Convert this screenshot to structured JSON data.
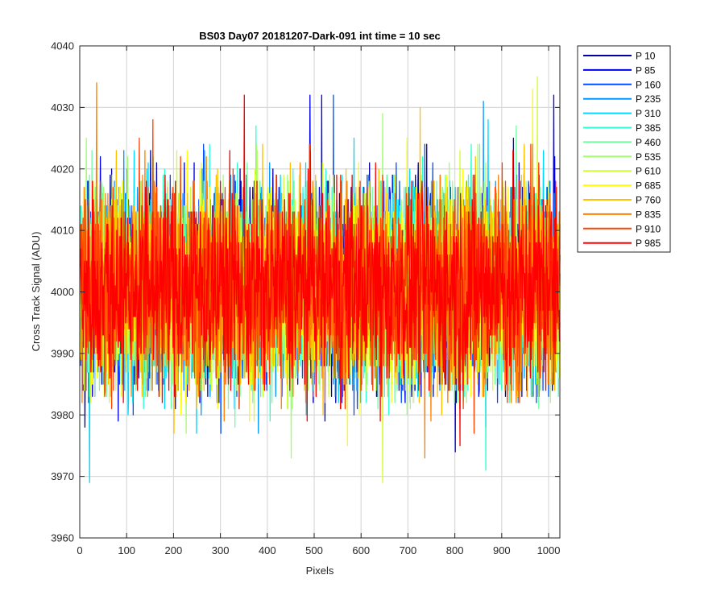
{
  "chart_data": {
    "type": "line",
    "title": "BS03 Day07 20181207-Dark-091 int time = 10 sec",
    "xlabel": "Pixels",
    "ylabel": "Cross Track Signal (ADU)",
    "xlim": [
      0,
      1024
    ],
    "ylim": [
      3960,
      4040
    ],
    "x_ticks": [
      0,
      100,
      200,
      300,
      400,
      500,
      600,
      700,
      800,
      900,
      1000
    ],
    "y_ticks": [
      3960,
      3970,
      3980,
      3990,
      4000,
      4010,
      4020,
      4030,
      4040
    ],
    "x_tick_labels": [
      "0",
      "100",
      "200",
      "300",
      "400",
      "500",
      "600",
      "700",
      "800",
      "900",
      "1000"
    ],
    "y_tick_labels": [
      "3960",
      "3970",
      "3980",
      "3990",
      "4000",
      "4010",
      "4020",
      "4030",
      "4040"
    ],
    "grid": true,
    "legend_position": "outside-top-right",
    "series": [
      {
        "name": "P 10",
        "color": "#0000a8",
        "summary": {
          "mean": 4001,
          "range": [
            3978,
            4024
          ]
        },
        "spikes": [
          [
            10,
            3978
          ],
          [
            150,
            4023
          ],
          [
            600,
            3985
          ]
        ]
      },
      {
        "name": "P 85",
        "color": "#0000ee",
        "summary": {
          "mean": 4001,
          "range": [
            3974,
            4032
          ]
        },
        "spikes": [
          [
            490,
            4032
          ],
          [
            515,
            4032
          ],
          [
            800,
            3974
          ],
          [
            1010,
            4032
          ]
        ]
      },
      {
        "name": "P 160",
        "color": "#0050ff",
        "summary": {
          "mean": 4001,
          "range": [
            3976,
            4032
          ]
        },
        "spikes": [
          [
            540,
            4032
          ],
          [
            300,
            3977
          ]
        ]
      },
      {
        "name": "P 235",
        "color": "#0098ff",
        "summary": {
          "mean": 4001,
          "range": [
            3976,
            4031
          ]
        },
        "spikes": [
          [
            860,
            4031
          ],
          [
            380,
            3977
          ]
        ]
      },
      {
        "name": "P 310",
        "color": "#00d8ff",
        "summary": {
          "mean": 4001,
          "range": [
            3969,
            4028
          ]
        },
        "spikes": [
          [
            20,
            3969
          ],
          [
            870,
            4028
          ]
        ]
      },
      {
        "name": "P 385",
        "color": "#30ffd0",
        "summary": {
          "mean": 4001,
          "range": [
            3971,
            4027
          ]
        },
        "spikes": [
          [
            865,
            3971
          ],
          [
            375,
            4027
          ]
        ]
      },
      {
        "name": "P 460",
        "color": "#70ffa0",
        "summary": {
          "mean": 4001,
          "range": [
            3977,
            4027
          ]
        },
        "spikes": [
          [
            930,
            4027
          ],
          [
            330,
            3978
          ]
        ]
      },
      {
        "name": "P 535",
        "color": "#a0ff70",
        "summary": {
          "mean": 4001,
          "range": [
            3973,
            4029
          ]
        },
        "spikes": [
          [
            645,
            4029
          ],
          [
            450,
            3973
          ]
        ]
      },
      {
        "name": "P 610",
        "color": "#d0ff30",
        "summary": {
          "mean": 4001,
          "range": [
            3969,
            4035
          ]
        },
        "spikes": [
          [
            975,
            4035
          ],
          [
            645,
            3969
          ]
        ]
      },
      {
        "name": "P 685",
        "color": "#ffff00",
        "summary": {
          "mean": 4001,
          "range": [
            3975,
            4033
          ]
        },
        "spikes": [
          [
            965,
            4033
          ],
          [
            570,
            3975
          ]
        ]
      },
      {
        "name": "P 760",
        "color": "#ffc000",
        "summary": {
          "mean": 4001,
          "range": [
            3976,
            4030
          ]
        },
        "spikes": [
          [
            725,
            4030
          ],
          [
            200,
            3977
          ]
        ]
      },
      {
        "name": "P 835",
        "color": "#ff8000",
        "summary": {
          "mean": 4001,
          "range": [
            3973,
            4034
          ]
        },
        "spikes": [
          [
            35,
            4034
          ],
          [
            735,
            3973
          ]
        ]
      },
      {
        "name": "P 910",
        "color": "#ff4000",
        "summary": {
          "mean": 4001,
          "range": [
            3977,
            4029
          ]
        },
        "spikes": [
          [
            155,
            4028
          ],
          [
            840,
            3977
          ]
        ]
      },
      {
        "name": "P 985",
        "color": "#ff0000",
        "summary": {
          "mean": 4001,
          "range": [
            3975,
            4032
          ]
        },
        "spikes": [
          [
            350,
            4032
          ],
          [
            810,
            3975
          ],
          [
            640,
            3979
          ]
        ]
      }
    ]
  }
}
